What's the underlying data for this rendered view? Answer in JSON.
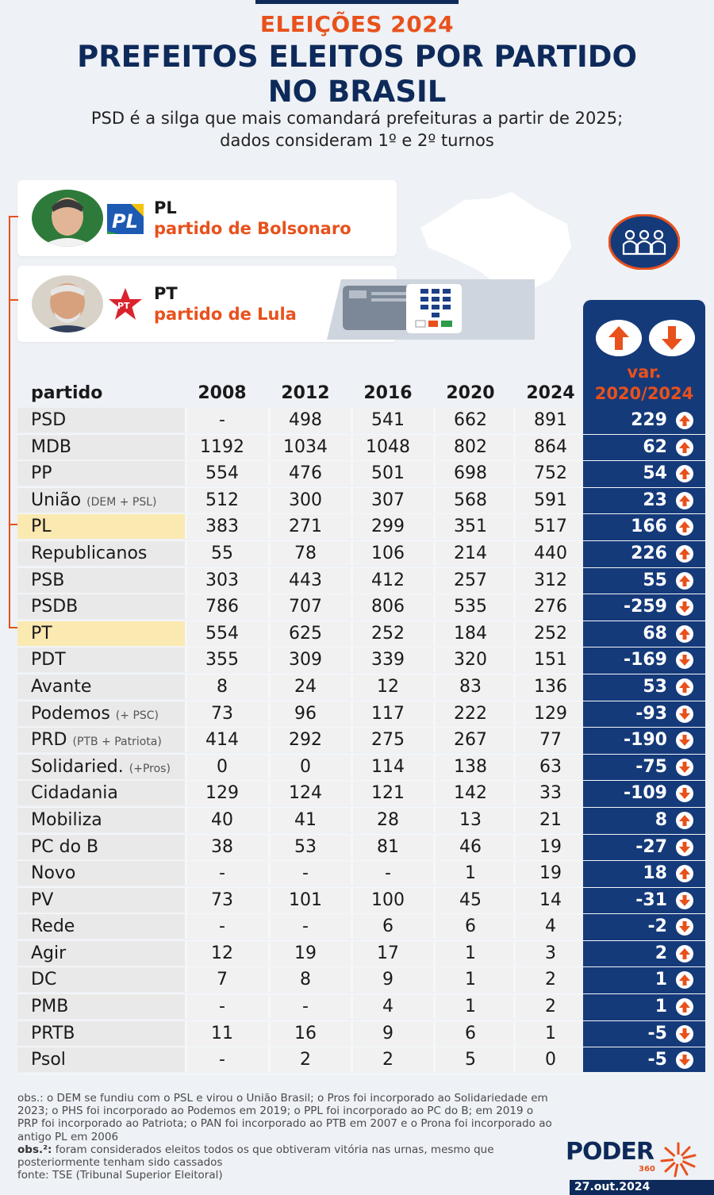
{
  "header": {
    "kicker": "ELEIÇÕES 2024",
    "title_line1": "PREFEITOS ELEITOS POR PARTIDO",
    "title_line2": "NO BRASIL",
    "subtitle_line1": "PSD é a silga que mais comandará prefeituras a partir de 2025;",
    "subtitle_line2": "dados consideram 1º e 2º turnos"
  },
  "cards": {
    "pl": {
      "logo_text": "PL",
      "name": "PL",
      "desc": "partido de Bolsonaro"
    },
    "pt": {
      "logo_text": "PT",
      "name": "PT",
      "desc": "partido de Lula"
    }
  },
  "var_header": {
    "line1": "var.",
    "line2": "2020/2024"
  },
  "colors": {
    "navy": "#153a7a",
    "orange": "#e8511c",
    "highlight": "#fbe9b2"
  },
  "chart_data": {
    "type": "table",
    "columns": [
      "partido",
      "2008",
      "2012",
      "2016",
      "2020",
      "2024"
    ],
    "rows": [
      {
        "partido": "PSD",
        "note": "",
        "values": [
          "-",
          "498",
          "541",
          "662",
          "891"
        ],
        "var": "229",
        "dir": "up",
        "hl": false
      },
      {
        "partido": "MDB",
        "note": "",
        "values": [
          "1192",
          "1034",
          "1048",
          "802",
          "864"
        ],
        "var": "62",
        "dir": "up",
        "hl": false
      },
      {
        "partido": "PP",
        "note": "",
        "values": [
          "554",
          "476",
          "501",
          "698",
          "752"
        ],
        "var": "54",
        "dir": "up",
        "hl": false
      },
      {
        "partido": "União",
        "note": "(DEM + PSL)",
        "values": [
          "512",
          "300",
          "307",
          "568",
          "591"
        ],
        "var": "23",
        "dir": "up",
        "hl": false
      },
      {
        "partido": "PL",
        "note": "",
        "values": [
          "383",
          "271",
          "299",
          "351",
          "517"
        ],
        "var": "166",
        "dir": "up",
        "hl": true
      },
      {
        "partido": "Republicanos",
        "note": "",
        "values": [
          "55",
          "78",
          "106",
          "214",
          "440"
        ],
        "var": "226",
        "dir": "up",
        "hl": false
      },
      {
        "partido": "PSB",
        "note": "",
        "values": [
          "303",
          "443",
          "412",
          "257",
          "312"
        ],
        "var": "55",
        "dir": "up",
        "hl": false
      },
      {
        "partido": "PSDB",
        "note": "",
        "values": [
          "786",
          "707",
          "806",
          "535",
          "276"
        ],
        "var": "-259",
        "dir": "down",
        "hl": false
      },
      {
        "partido": "PT",
        "note": "",
        "values": [
          "554",
          "625",
          "252",
          "184",
          "252"
        ],
        "var": "68",
        "dir": "up",
        "hl": true
      },
      {
        "partido": "PDT",
        "note": "",
        "values": [
          "355",
          "309",
          "339",
          "320",
          "151"
        ],
        "var": "-169",
        "dir": "down",
        "hl": false
      },
      {
        "partido": "Avante",
        "note": "",
        "values": [
          "8",
          "24",
          "12",
          "83",
          "136"
        ],
        "var": "53",
        "dir": "up",
        "hl": false
      },
      {
        "partido": "Podemos",
        "note": "(+ PSC)",
        "values": [
          "73",
          "96",
          "117",
          "222",
          "129"
        ],
        "var": "-93",
        "dir": "down",
        "hl": false
      },
      {
        "partido": "PRD",
        "note": "(PTB + Patriota)",
        "values": [
          "414",
          "292",
          "275",
          "267",
          "77"
        ],
        "var": "-190",
        "dir": "down",
        "hl": false
      },
      {
        "partido": "Solidaried.",
        "note": "(+Pros)",
        "values": [
          "0",
          "0",
          "114",
          "138",
          "63"
        ],
        "var": "-75",
        "dir": "down",
        "hl": false
      },
      {
        "partido": "Cidadania",
        "note": "",
        "values": [
          "129",
          "124",
          "121",
          "142",
          "33"
        ],
        "var": "-109",
        "dir": "down",
        "hl": false
      },
      {
        "partido": "Mobiliza",
        "note": "",
        "values": [
          "40",
          "41",
          "28",
          "13",
          "21"
        ],
        "var": "8",
        "dir": "up",
        "hl": false
      },
      {
        "partido": "PC do B",
        "note": "",
        "values": [
          "38",
          "53",
          "81",
          "46",
          "19"
        ],
        "var": "-27",
        "dir": "down",
        "hl": false
      },
      {
        "partido": "Novo",
        "note": "",
        "values": [
          "-",
          "-",
          "-",
          "1",
          "19"
        ],
        "var": "18",
        "dir": "up",
        "hl": false
      },
      {
        "partido": "PV",
        "note": "",
        "values": [
          "73",
          "101",
          "100",
          "45",
          "14"
        ],
        "var": "-31",
        "dir": "down",
        "hl": false
      },
      {
        "partido": "Rede",
        "note": "",
        "values": [
          "-",
          "-",
          "6",
          "6",
          "4"
        ],
        "var": "-2",
        "dir": "down",
        "hl": false
      },
      {
        "partido": "Agir",
        "note": "",
        "values": [
          "12",
          "19",
          "17",
          "1",
          "3"
        ],
        "var": "2",
        "dir": "up",
        "hl": false
      },
      {
        "partido": "DC",
        "note": "",
        "values": [
          "7",
          "8",
          "9",
          "1",
          "2"
        ],
        "var": "1",
        "dir": "up",
        "hl": false
      },
      {
        "partido": "PMB",
        "note": "",
        "values": [
          "-",
          "-",
          "4",
          "1",
          "2"
        ],
        "var": "1",
        "dir": "up",
        "hl": false
      },
      {
        "partido": "PRTB",
        "note": "",
        "values": [
          "11",
          "16",
          "9",
          "6",
          "1"
        ],
        "var": "-5",
        "dir": "down",
        "hl": false
      },
      {
        "partido": "Psol",
        "note": "",
        "values": [
          "-",
          "2",
          "2",
          "5",
          "0"
        ],
        "var": "-5",
        "dir": "down",
        "hl": false
      }
    ]
  },
  "notes": {
    "obs1": "obs.: o DEM se fundiu com o PSL e virou o União Brasil; o Pros foi incorporado ao Solidariedade em 2023; o PHS foi incorporado ao Podemos em 2019; o PPL foi incorporado ao PC do B; em 2019 o PRP foi incorporado ao Patriota; o PAN foi incorporado ao PTB em 2007 e o Prona foi incorporado ao antigo PL em 2006",
    "obs2_label": "obs.²:",
    "obs2": " foram considerados eleitos todos os que obtiveram vitória nas urnas, mesmo que posteriormente tenham sido cassados",
    "source": "fonte: TSE (Tribunal Superior Eleitoral)"
  },
  "brand": {
    "name": "PODER",
    "sub": "360",
    "date": "27.out.2024"
  }
}
